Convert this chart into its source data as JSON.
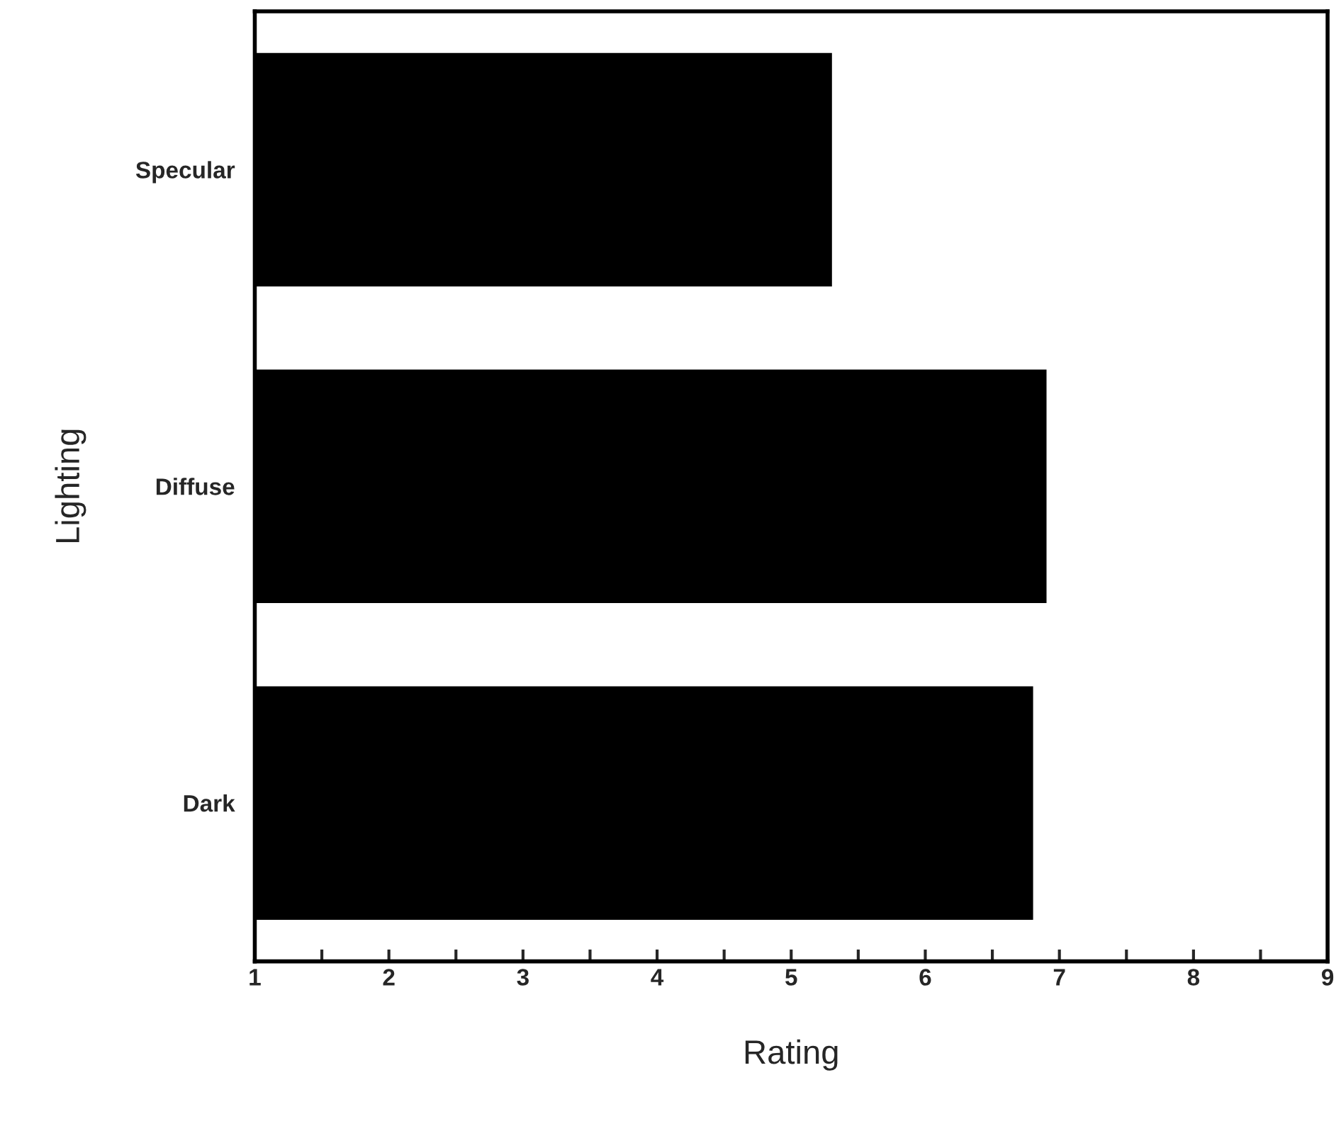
{
  "chart_data": {
    "type": "bar",
    "orientation": "horizontal",
    "xlabel": "Rating",
    "ylabel": "Lighting",
    "categories": [
      "Specular",
      "Diffuse",
      "Dark"
    ],
    "values": [
      5.26,
      6.86,
      6.76
    ],
    "color": "#000000",
    "xlim": [
      1,
      9
    ],
    "xticks": [
      1,
      {
        "value": 1.5,
        "label": null
      },
      2,
      {
        "value": 2.5,
        "label": null
      },
      3,
      {
        "value": 3.5,
        "label": null
      },
      4,
      {
        "value": 4.5,
        "label": null
      },
      5,
      {
        "value": 5.5,
        "label": null
      },
      6,
      {
        "value": 6.5,
        "label": null
      },
      7,
      {
        "value": 7.5,
        "label": null
      },
      8,
      {
        "value": 8.5,
        "label": null
      },
      9
    ],
    "grid": false,
    "legend": false
  }
}
